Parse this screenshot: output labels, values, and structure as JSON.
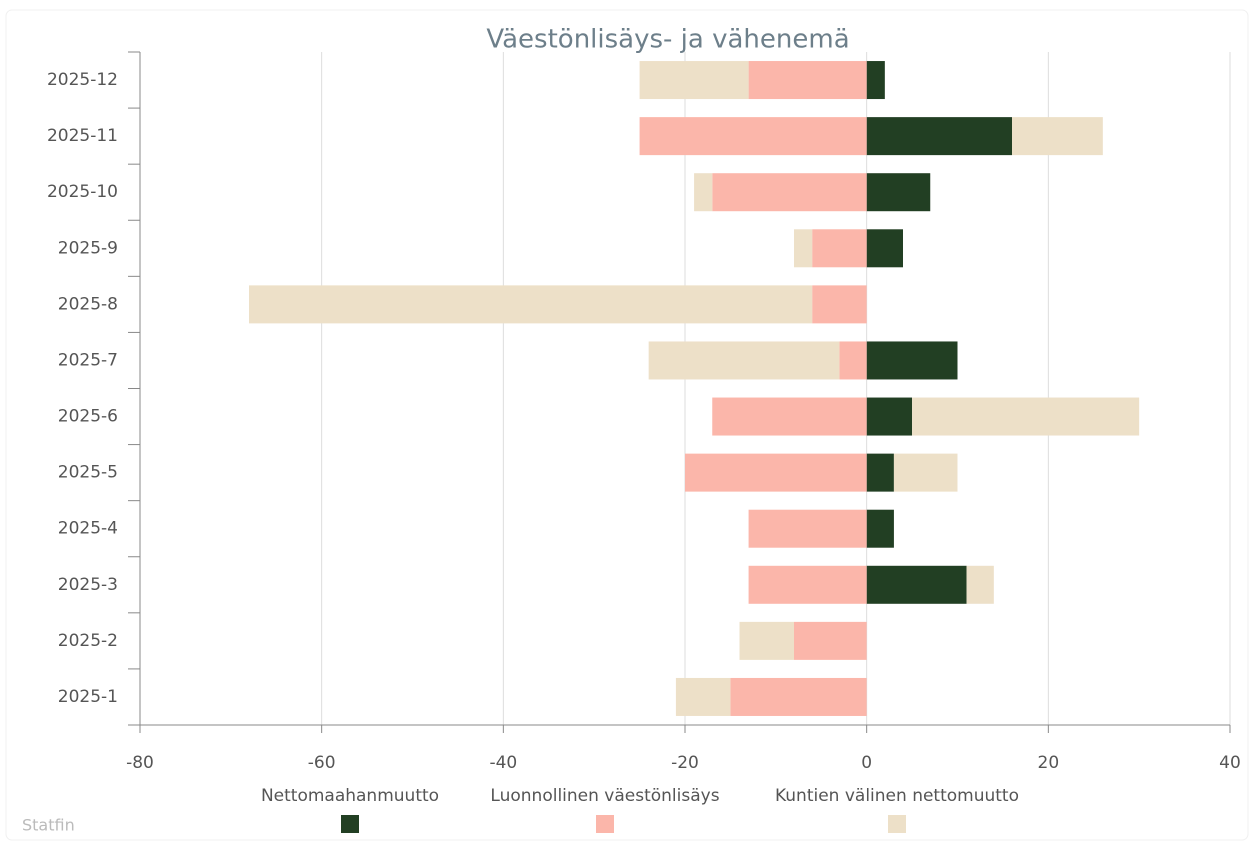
{
  "chart_data": {
    "type": "hbar_stacked",
    "title": "Väestönlisäys- ja vähenemä",
    "credit": "Statfin",
    "categories": [
      "2025-12",
      "2025-11",
      "2025-10",
      "2025-9",
      "2025-8",
      "2025-7",
      "2025-6",
      "2025-5",
      "2025-4",
      "2025-3",
      "2025-2",
      "2025-1"
    ],
    "series": [
      {
        "name": "Nettomaahanmuutto",
        "color": "#223f23",
        "values": [
          2,
          16,
          7,
          4,
          0,
          10,
          5,
          3,
          3,
          11,
          0,
          0
        ]
      },
      {
        "name": "Luonnollinen väestönlisäys",
        "color": "#fbb6aa",
        "values": [
          -13,
          -25,
          -17,
          -6,
          -6,
          -3,
          -17,
          -20,
          -13,
          -13,
          -8,
          -15
        ]
      },
      {
        "name": "Kuntien välinen nettomuutto",
        "color": "#ede0c8",
        "values": [
          -12,
          10,
          -2,
          -2,
          -62,
          -21,
          25,
          7,
          0,
          3,
          -6,
          -6
        ]
      }
    ],
    "xlim": [
      -80,
      40
    ],
    "xticks": [
      -80,
      -60,
      -40,
      -20,
      0,
      20,
      40
    ],
    "grid": true
  }
}
